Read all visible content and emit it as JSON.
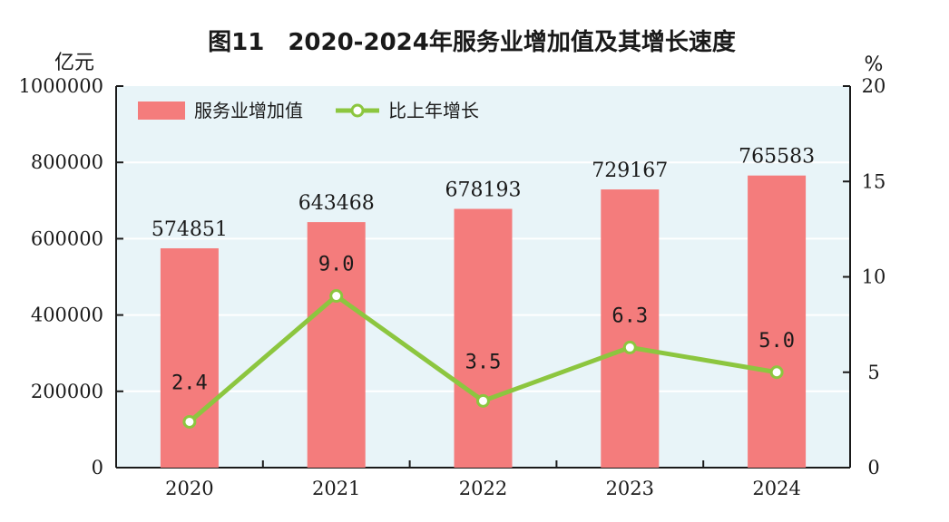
{
  "chart_data": {
    "type": "bar",
    "title": "图11　2020-2024年服务业增加值及其增长速度",
    "ylabel": "亿元",
    "y2label": "%",
    "categories": [
      "2020",
      "2021",
      "2022",
      "2023",
      "2024"
    ],
    "ylim": [
      0,
      1000000
    ],
    "y2lim": [
      0,
      20
    ],
    "yticks": [
      "0",
      "200000",
      "400000",
      "600000",
      "800000",
      "1000000"
    ],
    "y2ticks": [
      "0",
      "5",
      "10",
      "15",
      "20"
    ],
    "series": [
      {
        "name": "服务业增加值",
        "type": "bar",
        "axis": "left",
        "color": "#f47c7c",
        "values": [
          574851,
          643468,
          678193,
          729167,
          765583
        ],
        "labels": [
          "574851",
          "643468",
          "678193",
          "729167",
          "765583"
        ]
      },
      {
        "name": "比上年增长",
        "type": "line",
        "axis": "right",
        "color": "#8cc63f",
        "values": [
          2.4,
          9.0,
          3.5,
          6.3,
          5.0
        ],
        "labels": [
          "2.4",
          "9.0",
          "3.5",
          "6.3",
          "5.0"
        ]
      }
    ],
    "grid": true,
    "legend_position": "top-left",
    "plot_background": "#e8f4f8"
  }
}
